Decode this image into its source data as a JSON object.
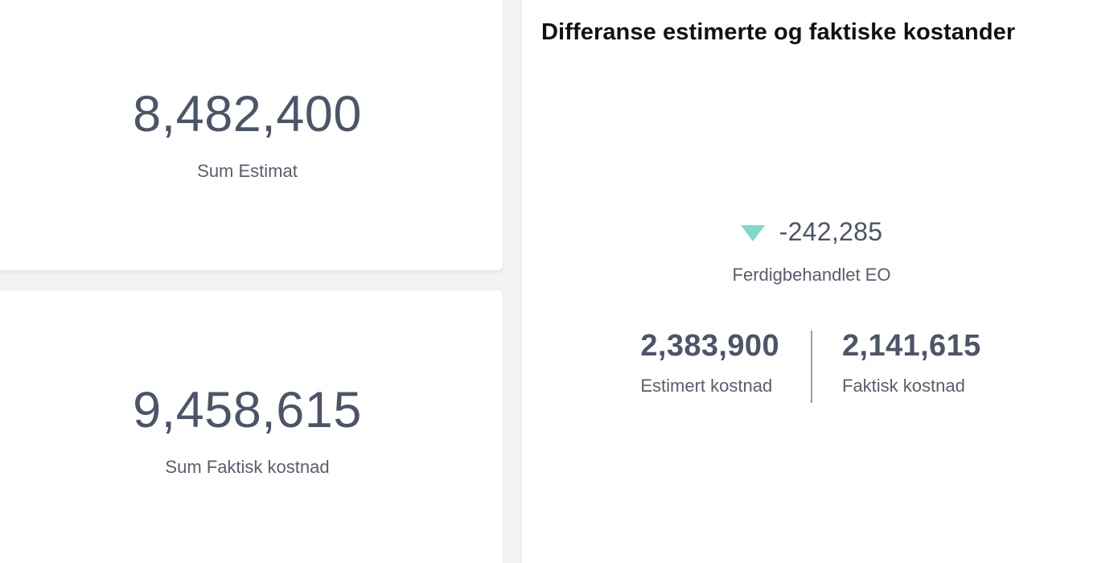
{
  "cards": {
    "sum_estimat": {
      "value": "8,482,400",
      "label": "Sum Estimat"
    },
    "sum_faktisk": {
      "value": "9,458,615",
      "label": "Sum Faktisk kostnad"
    }
  },
  "difference": {
    "title": "Differanse estimerte og faktiske kostander",
    "value": "-242,285",
    "trend_icon": "triangle-down-icon",
    "trend_color": "#7dd9c8",
    "label": "Ferdigbehandlet EO",
    "estimated": {
      "value": "2,383,900",
      "label": "Estimert kostnad"
    },
    "actual": {
      "value": "2,141,615",
      "label": "Faktisk kostnad"
    }
  }
}
